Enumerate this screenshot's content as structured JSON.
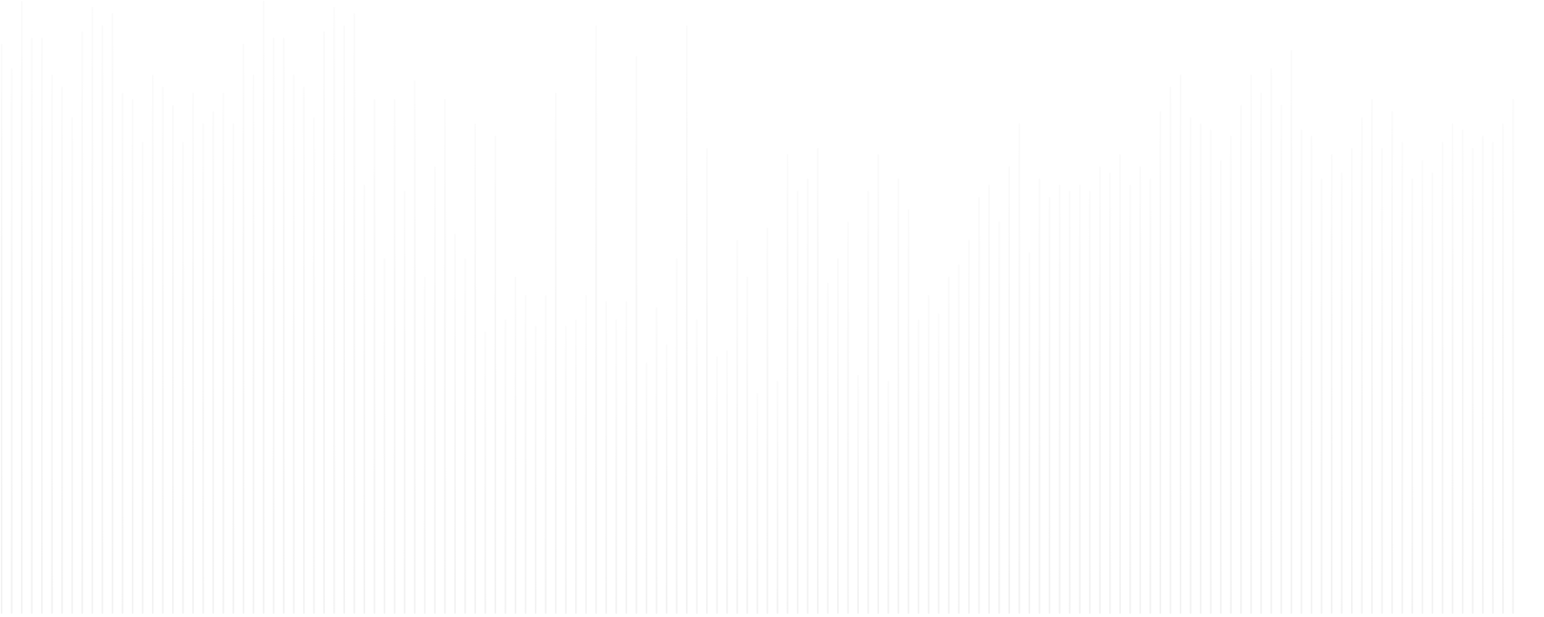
{
  "pattern": {
    "kind": "vertical-stripe-waveform",
    "bar_color": "#f2f2f2",
    "fade": "bottom-to-top",
    "levels": [
      0.93,
      0.89,
      1.0,
      0.94,
      0.94,
      0.88,
      0.86,
      0.81,
      0.95,
      0.99,
      0.96,
      0.98,
      0.85,
      0.84,
      0.77,
      0.88,
      0.86,
      0.83,
      0.77,
      0.85,
      0.8,
      0.82,
      0.85,
      0.8,
      0.93,
      0.88,
      1.0,
      0.94,
      0.94,
      0.88,
      0.86,
      0.81,
      0.95,
      0.99,
      0.96,
      0.98,
      0.7,
      0.84,
      0.58,
      0.84,
      0.69,
      0.87,
      0.55,
      0.73,
      0.84,
      0.62,
      0.58,
      0.8,
      0.46,
      0.78,
      0.48,
      0.55,
      0.52,
      0.47,
      0.52,
      0.85,
      0.47,
      0.48,
      0.52,
      0.96,
      0.51,
      0.48,
      0.51,
      0.91,
      0.41,
      0.5,
      0.44,
      0.58,
      0.96,
      0.48,
      0.76,
      0.42,
      0.43,
      0.61,
      0.55,
      0.36,
      0.63,
      0.38,
      0.75,
      0.69,
      0.71,
      0.76,
      0.54,
      0.58,
      0.64,
      0.39,
      0.69,
      0.75,
      0.38,
      0.71,
      0.66,
      0.48,
      0.52,
      0.49,
      0.55,
      0.57,
      0.61,
      0.68,
      0.7,
      0.64,
      0.73,
      0.8,
      0.59,
      0.71,
      0.68,
      0.7,
      0.69,
      0.7,
      0.69,
      0.73,
      0.72,
      0.75,
      0.7,
      0.73,
      0.71,
      0.82,
      0.86,
      0.88,
      0.81,
      0.8,
      0.79,
      0.74,
      0.78,
      0.83,
      0.88,
      0.85,
      0.89,
      0.83,
      0.92,
      0.79,
      0.78,
      0.71,
      0.75,
      0.72,
      0.76,
      0.81,
      0.84,
      0.76,
      0.82,
      0.77,
      0.71,
      0.74,
      0.72,
      0.77,
      0.8,
      0.79,
      0.76,
      0.78,
      0.77,
      0.8,
      0.84
    ]
  }
}
